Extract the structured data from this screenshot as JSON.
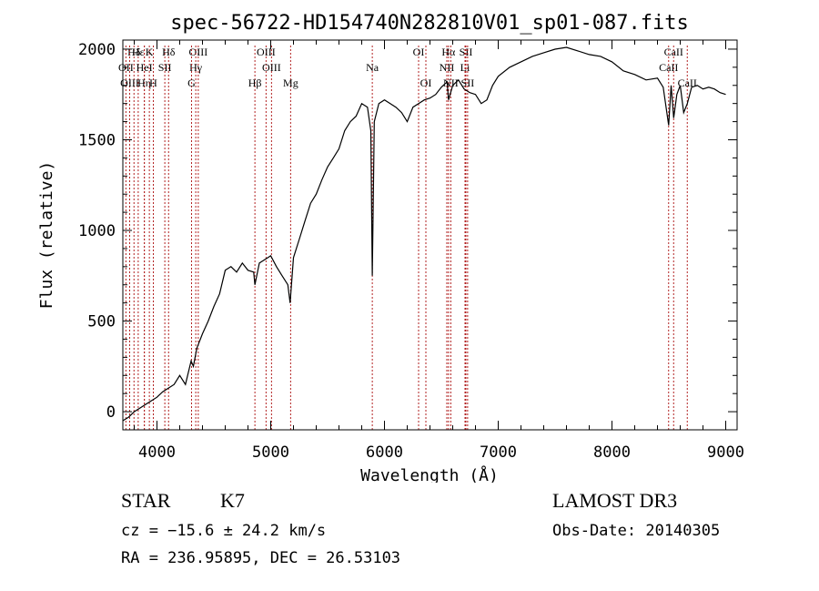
{
  "chart_data": {
    "type": "line",
    "title": "spec-56722-HD154740N282810V01_sp01-087.fits",
    "xlabel": "Wavelength (Å)",
    "ylabel": "Flux (relative)",
    "xlim": [
      3700,
      9100
    ],
    "ylim": [
      -100,
      2050
    ],
    "xticks": [
      4000,
      5000,
      6000,
      7000,
      8000,
      9000
    ],
    "yticks": [
      0,
      500,
      1000,
      1500,
      2000
    ],
    "grid": false,
    "legend": "none",
    "line_color": "#000000",
    "marker_color": "#b22222",
    "series": [
      {
        "x": [
          3700,
          3750,
          3800,
          3850,
          3900,
          3950,
          4000,
          4050,
          4100,
          4150,
          4200,
          4250,
          4300,
          4320,
          4350,
          4400,
          4450,
          4500,
          4550,
          4600,
          4650,
          4700,
          4750,
          4800,
          4850,
          4861,
          4900,
          4950,
          5000,
          5050,
          5100,
          5150,
          5170,
          5200,
          5250,
          5300,
          5350,
          5400,
          5450,
          5500,
          5550,
          5600,
          5650,
          5700,
          5750,
          5800,
          5850,
          5880,
          5893,
          5910,
          5950,
          6000,
          6050,
          6100,
          6150,
          6200,
          6250,
          6300,
          6350,
          6400,
          6450,
          6500,
          6550,
          6563,
          6600,
          6650,
          6700,
          6750,
          6800,
          6850,
          6900,
          6950,
          7000,
          7100,
          7200,
          7300,
          7400,
          7500,
          7600,
          7700,
          7800,
          7900,
          8000,
          8100,
          8200,
          8300,
          8400,
          8450,
          8498,
          8520,
          8542,
          8570,
          8600,
          8630,
          8662,
          8700,
          8750,
          8800,
          8850,
          8900,
          8950,
          9000
        ],
        "y": [
          -50,
          -30,
          0,
          20,
          40,
          60,
          80,
          110,
          130,
          150,
          200,
          150,
          280,
          250,
          350,
          430,
          500,
          580,
          650,
          780,
          800,
          770,
          820,
          780,
          770,
          700,
          820,
          840,
          860,
          800,
          750,
          700,
          600,
          850,
          950,
          1050,
          1150,
          1200,
          1280,
          1350,
          1400,
          1450,
          1550,
          1600,
          1630,
          1700,
          1680,
          1550,
          750,
          1600,
          1700,
          1720,
          1700,
          1680,
          1650,
          1600,
          1680,
          1700,
          1720,
          1730,
          1750,
          1790,
          1820,
          1720,
          1800,
          1830,
          1780,
          1760,
          1750,
          1700,
          1720,
          1800,
          1850,
          1900,
          1930,
          1960,
          1980,
          2000,
          2010,
          1990,
          1970,
          1960,
          1930,
          1880,
          1860,
          1830,
          1840,
          1790,
          1580,
          1800,
          1620,
          1750,
          1800,
          1650,
          1700,
          1790,
          1800,
          1780,
          1790,
          1780,
          1760,
          1750
        ]
      }
    ],
    "line_markers": [
      {
        "label": "Hδ",
        "x": 3798,
        "row": 1
      },
      {
        "label": "OII",
        "x": 3727,
        "row": 2
      },
      {
        "label": "OIII",
        "x": 3760,
        "row": 3
      },
      {
        "label": "Hε",
        "x": 3835,
        "row": 1
      },
      {
        "label": "HeI",
        "x": 3889,
        "row": 2
      },
      {
        "label": "Hη",
        "x": 3889,
        "row": 3
      },
      {
        "label": "K",
        "x": 3933,
        "row": 1
      },
      {
        "label": "H",
        "x": 3968,
        "row": 3
      },
      {
        "label": "SII",
        "x": 4069,
        "row": 2
      },
      {
        "label": "Hδ",
        "x": 4102,
        "row": 1
      },
      {
        "label": "OIII",
        "x": 4363,
        "row": 1
      },
      {
        "label": "Hγ",
        "x": 4341,
        "row": 2
      },
      {
        "label": "G",
        "x": 4304,
        "row": 3
      },
      {
        "label": "Hβ",
        "x": 4861,
        "row": 3
      },
      {
        "label": "OIII",
        "x": 4959,
        "row": 1
      },
      {
        "label": "OIII",
        "x": 5007,
        "row": 2
      },
      {
        "label": "Mg",
        "x": 5175,
        "row": 3
      },
      {
        "label": "Na",
        "x": 5893,
        "row": 2
      },
      {
        "label": "OI",
        "x": 6300,
        "row": 1
      },
      {
        "label": "OI",
        "x": 6364,
        "row": 3
      },
      {
        "label": "Hα",
        "x": 6563,
        "row": 1
      },
      {
        "label": "NII",
        "x": 6548,
        "row": 2
      },
      {
        "label": "NII",
        "x": 6583,
        "row": 3
      },
      {
        "label": "SII",
        "x": 6716,
        "row": 1
      },
      {
        "label": "Li",
        "x": 6708,
        "row": 2
      },
      {
        "label": "SII",
        "x": 6731,
        "row": 3
      },
      {
        "label": "CaII",
        "x": 8542,
        "row": 1
      },
      {
        "label": "CaII",
        "x": 8498,
        "row": 2
      },
      {
        "label": "CaII",
        "x": 8662,
        "row": 3
      }
    ]
  },
  "footer": {
    "object_class": "STAR",
    "subclass": "K7",
    "survey": "LAMOST DR3",
    "redshift_line": "cz = −15.6 ± 24.2 km/s",
    "obs_date_line": "Obs-Date: 20140305",
    "coords_line": "RA = 236.95895, DEC =  26.53103"
  }
}
